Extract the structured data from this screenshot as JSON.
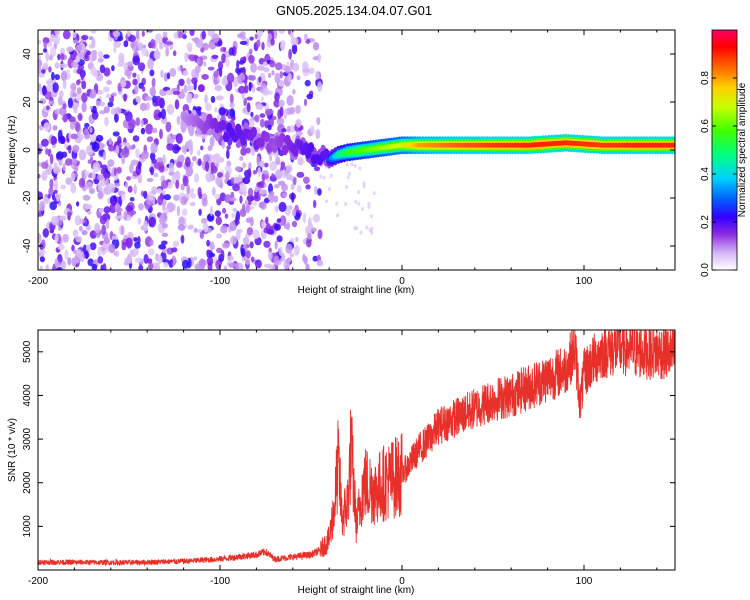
{
  "figure_title": "GN05.2025.134.04.07.G01",
  "colors": {
    "snr_line": "#e8302a",
    "frame": "#000000",
    "colormap": [
      "#e9d9f8",
      "#a24bf2",
      "#5a00f0",
      "#1a1aff",
      "#00d0ff",
      "#00ff6a",
      "#66ff00",
      "#ffff00",
      "#ff9a00",
      "#ff0000",
      "#ff0070"
    ]
  },
  "chart_data": [
    {
      "type": "heatmap",
      "xlabel": "Height of straight line (km)",
      "ylabel": "Frequency (Hz)",
      "xlim": [
        -200,
        150
      ],
      "ylim": [
        -50,
        50
      ],
      "xticks": [
        -200,
        -100,
        0,
        100
      ],
      "xtick_labels": [
        "-200",
        "-100",
        "0",
        "100"
      ],
      "yticks": [
        -40,
        -20,
        0,
        20,
        40
      ],
      "ytick_labels": [
        "-40",
        "-20",
        "0",
        "20",
        "40"
      ],
      "colorbar": {
        "label": "Normalized spectral amplitude",
        "range": [
          0,
          1
        ],
        "ticks": [
          0.0,
          0.2,
          0.4,
          0.6,
          0.8
        ],
        "tick_labels": [
          "0.0",
          "0.2",
          "0.4",
          "0.6",
          "0.8"
        ]
      },
      "noise_region": {
        "x": [
          -200,
          -45
        ],
        "y": [
          -50,
          50
        ]
      },
      "ridge": [
        {
          "x": -120,
          "y": 12,
          "amp": 0.15
        },
        {
          "x": -110,
          "y": 11,
          "amp": 0.2
        },
        {
          "x": -100,
          "y": 9,
          "amp": 0.25
        },
        {
          "x": -95,
          "y": 8,
          "amp": 0.3
        },
        {
          "x": -90,
          "y": 7,
          "amp": 0.28
        },
        {
          "x": -80,
          "y": 5,
          "amp": 0.25
        },
        {
          "x": -70,
          "y": 3,
          "amp": 0.2
        },
        {
          "x": -60,
          "y": 1,
          "amp": 0.25
        },
        {
          "x": -50,
          "y": -1,
          "amp": 0.3
        },
        {
          "x": -45,
          "y": -3,
          "amp": 0.3
        },
        {
          "x": -40,
          "y": -4,
          "amp": 0.28
        },
        {
          "x": -35,
          "y": -2,
          "amp": 0.45
        },
        {
          "x": -30,
          "y": -1,
          "amp": 0.55
        },
        {
          "x": -20,
          "y": 0,
          "amp": 0.6
        },
        {
          "x": -10,
          "y": 1,
          "amp": 0.65
        },
        {
          "x": 0,
          "y": 2,
          "amp": 0.7
        },
        {
          "x": 10,
          "y": 2,
          "amp": 0.8
        },
        {
          "x": 30,
          "y": 2,
          "amp": 0.85
        },
        {
          "x": 50,
          "y": 2,
          "amp": 0.88
        },
        {
          "x": 70,
          "y": 2,
          "amp": 0.9
        },
        {
          "x": 90,
          "y": 3,
          "amp": 0.9
        },
        {
          "x": 110,
          "y": 2,
          "amp": 0.88
        },
        {
          "x": 130,
          "y": 2,
          "amp": 0.9
        },
        {
          "x": 150,
          "y": 2,
          "amp": 0.9
        }
      ]
    },
    {
      "type": "line",
      "xlabel": "Height of straight line (km)",
      "ylabel": "SNR (10 * v/v)",
      "xlim": [
        -200,
        150
      ],
      "ylim": [
        0,
        5500
      ],
      "xticks": [
        -200,
        -100,
        0,
        100
      ],
      "xtick_labels": [
        "-200",
        "-100",
        "0",
        "100"
      ],
      "yticks": [
        1000,
        2000,
        3000,
        4000,
        5000
      ],
      "ytick_labels": [
        "1000",
        "2000",
        "3000",
        "4000",
        "5000"
      ],
      "series": [
        {
          "x": [
            -200,
            -150,
            -120,
            -100,
            -90,
            -80,
            -75,
            -70,
            -60,
            -50,
            -45,
            -40,
            -37,
            -35,
            -33,
            -30,
            -28,
            -25,
            -22,
            -20,
            -15,
            -10,
            -5,
            0,
            5,
            10,
            15,
            20,
            25,
            30,
            40,
            50,
            60,
            70,
            80,
            90,
            95,
            98,
            100,
            105,
            110,
            120,
            130,
            140,
            150
          ],
          "y": [
            180,
            170,
            200,
            250,
            300,
            350,
            420,
            250,
            300,
            350,
            450,
            700,
            1500,
            2500,
            1200,
            1500,
            2800,
            1000,
            1800,
            2000,
            1800,
            2000,
            2100,
            2200,
            2500,
            2800,
            3000,
            3300,
            3400,
            3500,
            3700,
            3900,
            4000,
            4200,
            4400,
            4600,
            5100,
            3800,
            4500,
            4800,
            5000,
            5100,
            5000,
            5000,
            4950
          ]
        }
      ]
    }
  ]
}
